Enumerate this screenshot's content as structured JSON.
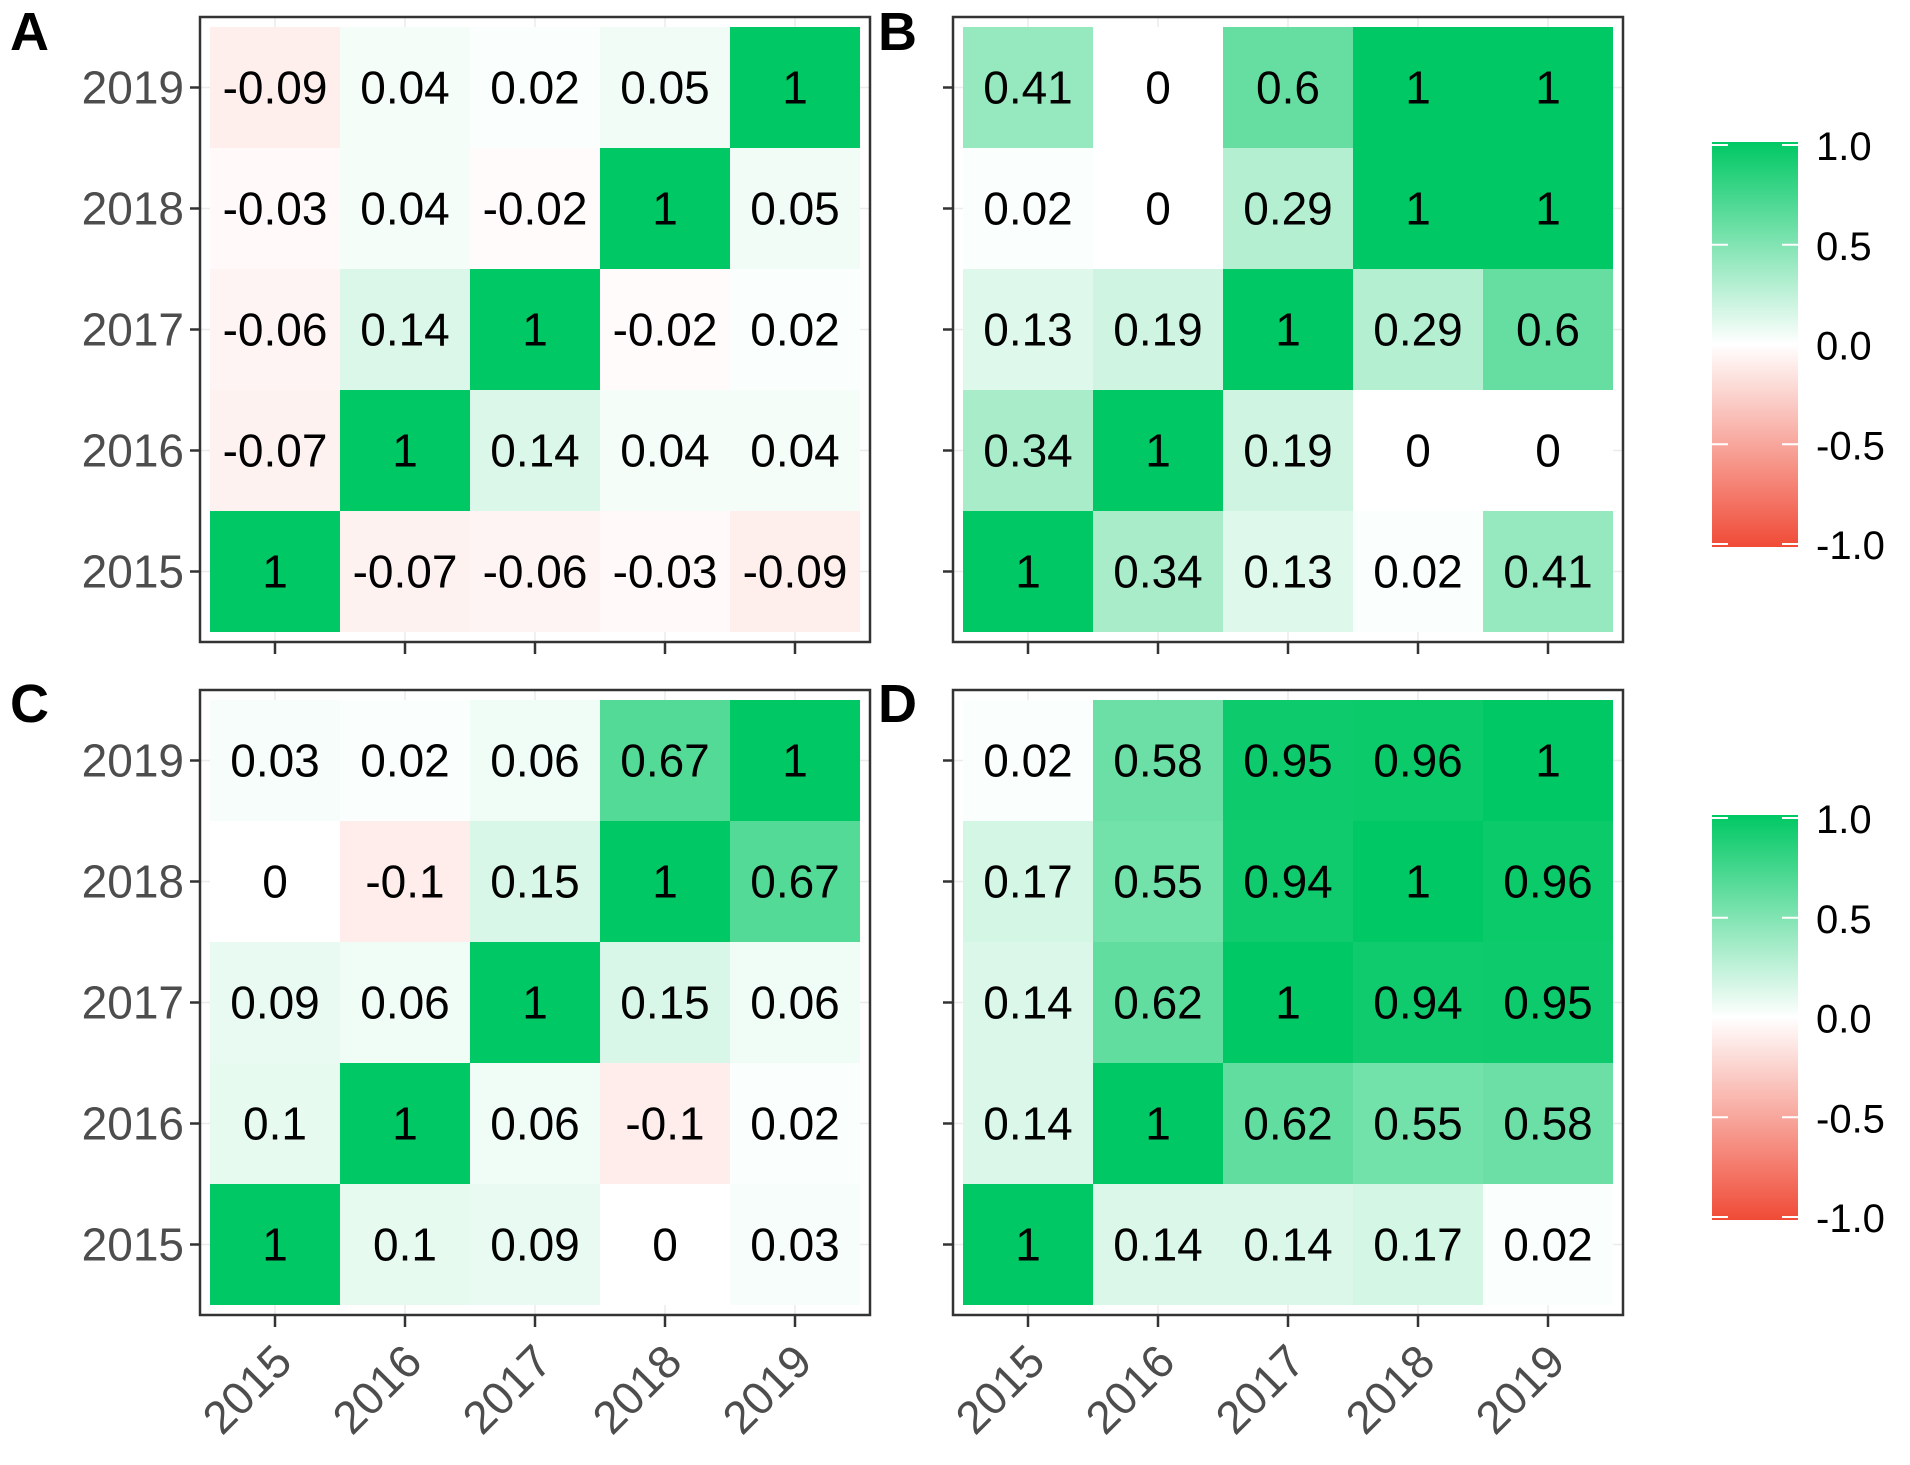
{
  "figure": {
    "years": [
      "2015",
      "2016",
      "2017",
      "2018",
      "2019"
    ],
    "colorbar_ticks": [
      "1.0",
      "0.5",
      "0.0",
      "-0.5",
      "-1.0"
    ],
    "colors": {
      "high": "#00C864",
      "mid": "#FFFFFF",
      "low": "#F04B37",
      "panel_border": "#333333",
      "grid": "#EBEBEB",
      "tick": "#4D4D4D"
    }
  },
  "chart_data": [
    {
      "type": "heatmap",
      "panel_label": "A",
      "x": [
        "2015",
        "2016",
        "2017",
        "2018",
        "2019"
      ],
      "y": [
        "2015",
        "2016",
        "2017",
        "2018",
        "2019"
      ],
      "values": [
        [
          1,
          -0.07,
          -0.06,
          -0.03,
          -0.09
        ],
        [
          -0.07,
          1,
          0.14,
          0.04,
          0.04
        ],
        [
          -0.06,
          0.14,
          1,
          -0.02,
          0.02
        ],
        [
          -0.03,
          0.04,
          -0.02,
          1,
          0.05
        ],
        [
          -0.09,
          0.04,
          0.02,
          0.05,
          1
        ]
      ],
      "color_range": [
        -1,
        1
      ]
    },
    {
      "type": "heatmap",
      "panel_label": "B",
      "x": [
        "2015",
        "2016",
        "2017",
        "2018",
        "2019"
      ],
      "y": [
        "2015",
        "2016",
        "2017",
        "2018",
        "2019"
      ],
      "values": [
        [
          1,
          0.34,
          0.13,
          0.02,
          0.41
        ],
        [
          0.34,
          1,
          0.19,
          0,
          0
        ],
        [
          0.13,
          0.19,
          1,
          0.29,
          0.6
        ],
        [
          0.02,
          0,
          0.29,
          1,
          1
        ],
        [
          0.41,
          0,
          0.6,
          1,
          1
        ]
      ],
      "color_range": [
        -1,
        1
      ]
    },
    {
      "type": "heatmap",
      "panel_label": "C",
      "x": [
        "2015",
        "2016",
        "2017",
        "2018",
        "2019"
      ],
      "y": [
        "2015",
        "2016",
        "2017",
        "2018",
        "2019"
      ],
      "values": [
        [
          1,
          0.1,
          0.09,
          0,
          0.03
        ],
        [
          0.1,
          1,
          0.06,
          -0.1,
          0.02
        ],
        [
          0.09,
          0.06,
          1,
          0.15,
          0.06
        ],
        [
          0,
          -0.1,
          0.15,
          1,
          0.67
        ],
        [
          0.03,
          0.02,
          0.06,
          0.67,
          1
        ]
      ],
      "color_range": [
        -1,
        1
      ]
    },
    {
      "type": "heatmap",
      "panel_label": "D",
      "x": [
        "2015",
        "2016",
        "2017",
        "2018",
        "2019"
      ],
      "y": [
        "2015",
        "2016",
        "2017",
        "2018",
        "2019"
      ],
      "values": [
        [
          1,
          0.14,
          0.14,
          0.17,
          0.02
        ],
        [
          0.14,
          1,
          0.62,
          0.55,
          0.58
        ],
        [
          0.14,
          0.62,
          1,
          0.94,
          0.95
        ],
        [
          0.17,
          0.55,
          0.94,
          1,
          0.96
        ],
        [
          0.02,
          0.58,
          0.95,
          0.96,
          1
        ]
      ],
      "color_range": [
        -1,
        1
      ]
    }
  ]
}
